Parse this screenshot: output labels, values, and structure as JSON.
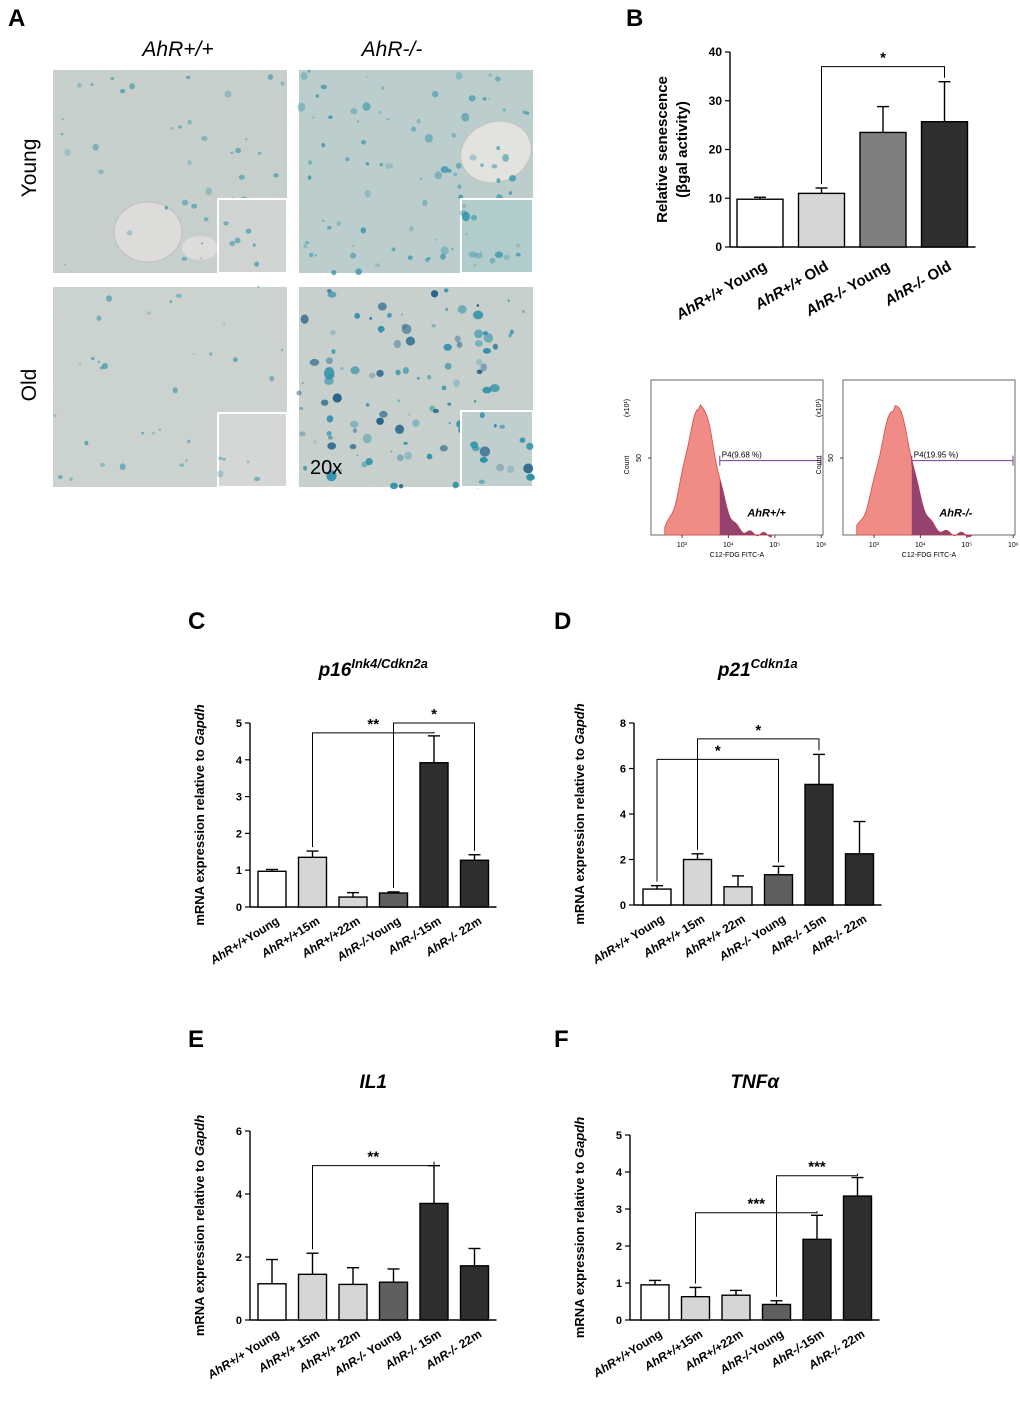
{
  "figure": {
    "panel_letters": [
      "A",
      "B",
      "C",
      "D",
      "E",
      "F"
    ]
  },
  "panel_a": {
    "col_labels": [
      "AhR+/+",
      "AhR-/-"
    ],
    "row_labels": [
      "Young",
      "Old"
    ],
    "magnification": "20x"
  },
  "chart_data": [
    {
      "id": "B",
      "type": "bar",
      "title": "",
      "ylabel": "Relative senescence (βgal activity)",
      "ylabel_lines": [
        "Relative senescence",
        "(βgal activity)"
      ],
      "ylim": [
        0,
        40
      ],
      "yticks": [
        "0",
        "10",
        "20",
        "30",
        "40"
      ],
      "categories": [
        "AhR+/+ Young",
        "AhR+/+ Old",
        "AhR-/- Young",
        "AhR-/- Old"
      ],
      "values": [
        9.8,
        11.0,
        23.5,
        25.7
      ],
      "errors": [
        0.4,
        1.1,
        5.3,
        8.2
      ],
      "colors": [
        "#ffffff",
        "#d6d6d6",
        "#7f7f7f",
        "#2e2e2e"
      ],
      "annotations": [
        {
          "from": 1,
          "to": 3,
          "label": "*",
          "level": 37
        }
      ]
    },
    {
      "id": "C",
      "type": "bar",
      "title": "p16",
      "title_sup": "Ink4/Cdkn2a",
      "ylabel": "mRNA expression relative to Gapdh",
      "ylim": [
        0,
        5
      ],
      "yticks": [
        "0",
        "1",
        "2",
        "3",
        "4",
        "5"
      ],
      "categories": [
        "AhR+/+Young",
        "AhR+/+15m",
        "AhR+/+22m",
        "AhR-/-Young",
        "AhR-/-15m",
        "AhR-/- 22m"
      ],
      "values": [
        0.97,
        1.35,
        0.27,
        0.38,
        3.92,
        1.27
      ],
      "errors": [
        0.05,
        0.17,
        0.12,
        0.03,
        0.73,
        0.15
      ],
      "colors": [
        "#ffffff",
        "#d6d6d6",
        "#d6d6d6",
        "#5f5f5f",
        "#2e2e2e",
        "#2e2e2e"
      ],
      "annotations": [
        {
          "from": 1,
          "to": 4,
          "label": "**",
          "level": 4.73
        },
        {
          "from": 3,
          "to": 5,
          "label": "*",
          "level": 5.0
        }
      ]
    },
    {
      "id": "D",
      "type": "bar",
      "title": "p21",
      "title_sup": "Cdkn1a",
      "ylabel": "mRNA expression relative to Gapdh",
      "ylim": [
        0,
        8
      ],
      "yticks": [
        "0",
        "2",
        "4",
        "6",
        "8"
      ],
      "categories": [
        "AhR+/+ Young",
        "AhR+/+ 15m",
        "AhR+/+ 22m",
        "AhR-/- Young",
        "AhR-/- 15m",
        "AhR-/- 22m"
      ],
      "values": [
        0.7,
        2.0,
        0.8,
        1.33,
        5.3,
        2.25
      ],
      "errors": [
        0.15,
        0.25,
        0.48,
        0.37,
        1.32,
        1.42
      ],
      "colors": [
        "#ffffff",
        "#d6d6d6",
        "#d6d6d6",
        "#5f5f5f",
        "#2e2e2e",
        "#2e2e2e"
      ],
      "annotations": [
        {
          "from": 1,
          "to": 4,
          "label": "*",
          "level": 7.3
        },
        {
          "from": 0,
          "to": 3,
          "label": "*",
          "level": 6.4
        }
      ]
    },
    {
      "id": "E",
      "type": "bar",
      "title": "IL1",
      "ylabel": "mRNA expression relative to Gapdh",
      "ylim": [
        0,
        6
      ],
      "yticks": [
        "0",
        "2",
        "4",
        "6"
      ],
      "categories": [
        "AhR+/+ Young",
        "AhR+/+ 15m",
        "AhR+/+ 22m",
        "AhR-/- Young",
        "AhR-/- 15m",
        "AhR-/- 22m"
      ],
      "values": [
        1.15,
        1.45,
        1.13,
        1.2,
        3.7,
        1.72
      ],
      "errors": [
        0.77,
        0.67,
        0.53,
        0.42,
        1.2,
        0.55
      ],
      "colors": [
        "#ffffff",
        "#d6d6d6",
        "#d6d6d6",
        "#5f5f5f",
        "#2e2e2e",
        "#2e2e2e"
      ],
      "annotations": [
        {
          "from": 1,
          "to": 4,
          "label": "**",
          "level": 4.9
        }
      ]
    },
    {
      "id": "F",
      "type": "bar",
      "title": "TNFα",
      "ylabel": "mRNA expression relative to Gapdh",
      "ylim": [
        0,
        5
      ],
      "yticks": [
        "0",
        "1",
        "2",
        "3",
        "4",
        "5"
      ],
      "categories": [
        "AhR+/+Young",
        "AhR+/+15m",
        "AhR+/+22m",
        "AhR-/-Young",
        "AhR-/-15m",
        "AhR-/- 22m"
      ],
      "values": [
        0.95,
        0.63,
        0.67,
        0.42,
        2.18,
        3.35
      ],
      "errors": [
        0.12,
        0.25,
        0.13,
        0.1,
        0.65,
        0.5
      ],
      "colors": [
        "#ffffff",
        "#d6d6d6",
        "#d6d6d6",
        "#5f5f5f",
        "#2e2e2e",
        "#2e2e2e"
      ],
      "annotations": [
        {
          "from": 1,
          "to": 4,
          "label": "***",
          "level": 2.9
        },
        {
          "from": 3,
          "to": 5,
          "label": "***",
          "level": 3.9
        }
      ]
    }
  ],
  "flow_plots": [
    {
      "genotype": "AhR+/+",
      "gate_label": "P4(9.68 %)",
      "gate_percent": 9.68,
      "ylabel": "Count",
      "y_exponent": "(x10¹)",
      "y_tick": "50",
      "xlabel": "C12-FDG FITC-A",
      "xticks": [
        "10³",
        "10⁴",
        "10⁵",
        "10⁶"
      ]
    },
    {
      "genotype": "AhR-/-",
      "gate_label": "P4(19.95 %)",
      "gate_percent": 19.95,
      "ylabel": "Count",
      "y_exponent": "(x10¹)",
      "y_tick": "50",
      "xlabel": "C12-FDG FITC-A",
      "xticks": [
        "10³",
        "10⁴",
        "10⁵",
        "10⁶"
      ]
    }
  ],
  "colors": {
    "histogram_fill": "#f08c86",
    "histogram_stroke": "#d94a40",
    "gate_fill": "#8b3a6b",
    "gate_line": "#7a3a8c",
    "tissue_base": "#c9cfc9",
    "stain": "#2a8fa8"
  }
}
